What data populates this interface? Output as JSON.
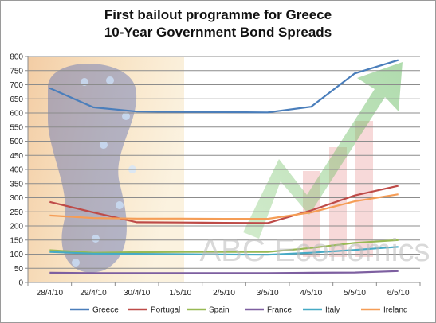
{
  "chart_data": {
    "type": "line",
    "title": "First bailout programme for Greece",
    "subtitle": "10-Year Government Bond Spreads",
    "xlabel": "",
    "ylabel": "",
    "ylim": [
      0,
      800
    ],
    "y_ticks": [
      0,
      50,
      100,
      150,
      200,
      250,
      300,
      350,
      400,
      450,
      500,
      550,
      600,
      650,
      700,
      750,
      800
    ],
    "grid": true,
    "legend_position": "bottom",
    "categories": [
      "28/4/10",
      "29/4/10",
      "30/4/10",
      "1/5/10",
      "2/5/10",
      "3/5/10",
      "4/5/10",
      "5/5/10",
      "6/5/10"
    ],
    "series": [
      {
        "name": "Greece",
        "color": "#4a7ebb",
        "values": [
          688,
          620,
          605,
          604,
          603,
          602,
          622,
          740,
          787
        ]
      },
      {
        "name": "Portugal",
        "color": "#be4b48",
        "values": [
          285,
          248,
          213,
          212,
          211,
          210,
          255,
          308,
          342
        ]
      },
      {
        "name": "Spain",
        "color": "#98b954",
        "values": [
          114,
          105,
          107,
          108,
          108,
          108,
          122,
          140,
          150
        ]
      },
      {
        "name": "France",
        "color": "#7d5fa0",
        "values": [
          34,
          33,
          33,
          33,
          33,
          33,
          34,
          35,
          40
        ]
      },
      {
        "name": "Italy",
        "color": "#46aac5",
        "values": [
          108,
          102,
          101,
          100,
          99,
          98,
          105,
          115,
          126
        ]
      },
      {
        "name": "Ireland",
        "color": "#f59d56",
        "values": [
          237,
          228,
          226,
          226,
          225,
          225,
          248,
          287,
          312
        ]
      }
    ],
    "watermark_text": "ABC Economics"
  }
}
